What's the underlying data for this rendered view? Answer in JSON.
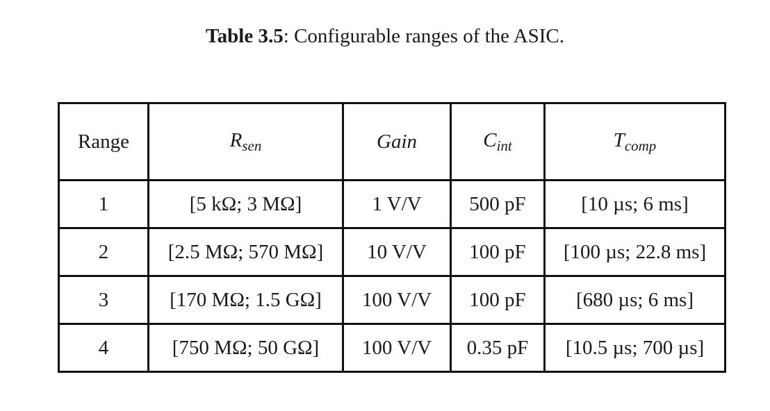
{
  "caption": {
    "label": "Table 3.5",
    "text": ": Configurable ranges of the ASIC."
  },
  "table": {
    "headers": [
      {
        "main": "Range",
        "sub": ""
      },
      {
        "main": "R",
        "sub": "sen"
      },
      {
        "main": "Gain",
        "sub": ""
      },
      {
        "main": "C",
        "sub": "int"
      },
      {
        "main": "T",
        "sub": "comp"
      }
    ],
    "rows": [
      [
        "1",
        "[5 kΩ; 3 MΩ]",
        "1 V/V",
        "500 pF",
        "[10 µs; 6 ms]"
      ],
      [
        "2",
        "[2.5 MΩ; 570 MΩ]",
        "10 V/V",
        "100 pF",
        "[100 µs; 22.8 ms]"
      ],
      [
        "3",
        "[170 MΩ; 1.5 GΩ]",
        "100 V/V",
        "100 pF",
        "[680 µs; 6 ms]"
      ],
      [
        "4",
        "[750 MΩ; 50 GΩ]",
        "100 V/V",
        "0.35 pF",
        "[10.5 µs; 700 µs]"
      ]
    ]
  }
}
